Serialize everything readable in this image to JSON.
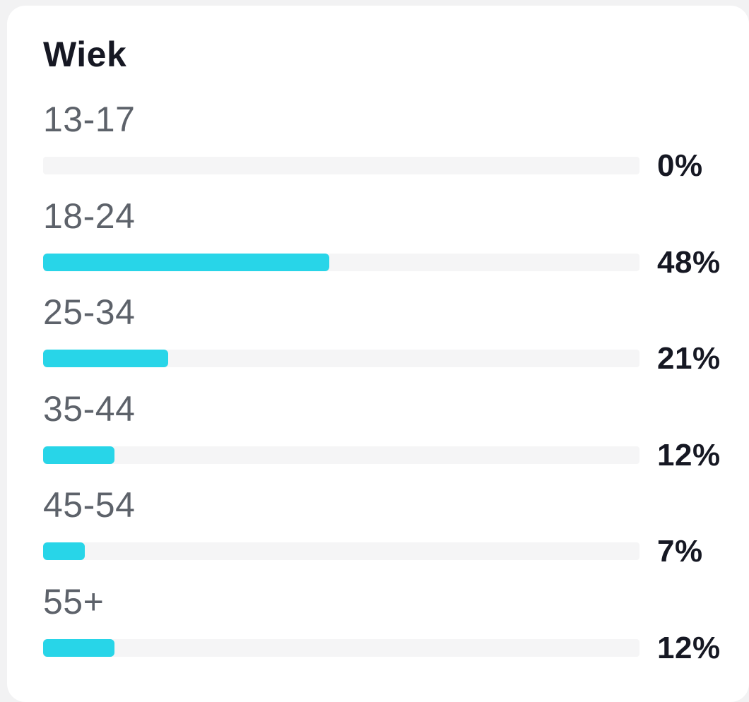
{
  "card": {
    "title": "Wiek",
    "rows": [
      {
        "label": "13-17",
        "value": 0,
        "pct_label": "0%"
      },
      {
        "label": "18-24",
        "value": 48,
        "pct_label": "48%"
      },
      {
        "label": "25-34",
        "value": 21,
        "pct_label": "21%"
      },
      {
        "label": "35-44",
        "value": 12,
        "pct_label": "12%"
      },
      {
        "label": "45-54",
        "value": 7,
        "pct_label": "7%"
      },
      {
        "label": "55+",
        "value": 12,
        "pct_label": "12%"
      }
    ]
  },
  "chart_data": {
    "type": "bar",
    "orientation": "horizontal",
    "title": "Wiek",
    "categories": [
      "13-17",
      "18-24",
      "25-34",
      "35-44",
      "45-54",
      "55+"
    ],
    "values": [
      0,
      48,
      21,
      12,
      7,
      12
    ],
    "unit": "%",
    "value_labels": [
      "0%",
      "48%",
      "21%",
      "12%",
      "7%",
      "12%"
    ],
    "xlim": [
      0,
      100
    ],
    "grid": false,
    "legend": false
  },
  "colors": {
    "accent_bar": "#28d5e8",
    "bar_track": "#f5f5f6",
    "text_dark": "#161823",
    "text_gray": "#5d626a",
    "card_bg": "#ffffff",
    "page_bg": "#f2f2f3"
  }
}
